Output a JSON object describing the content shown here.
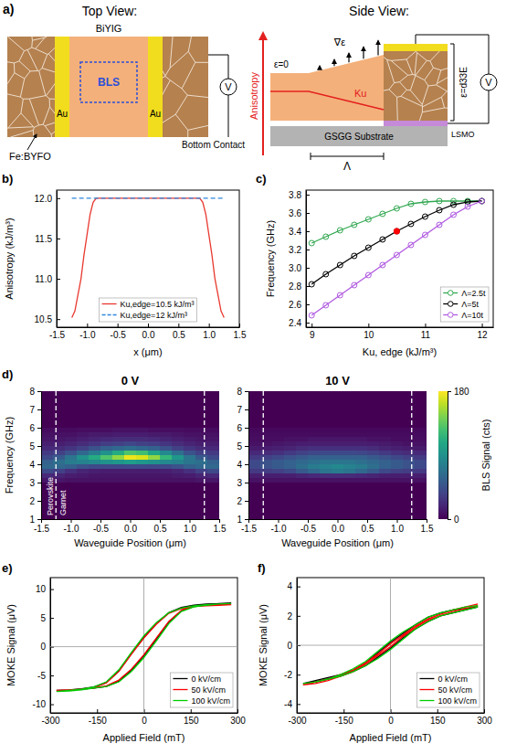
{
  "diagram": {
    "label": "a)",
    "top_view": {
      "title": "Top View:",
      "film": "BiYIG",
      "probe": "BLS",
      "electrodes": [
        "Au",
        "Au"
      ],
      "surround": "Fe:BYFO",
      "contact": "Bottom Contact",
      "meter": "V"
    },
    "side_view": {
      "title": "Side View:",
      "axis": "Anisotropy",
      "strain_zero": "ε=0",
      "strain_gradient": "∇ε",
      "anisotropy": "Ku",
      "strain": "ε=d33E",
      "meter": "V",
      "substrate": "GSGG Substrate",
      "electrode": "LSMO",
      "period": "Λ"
    }
  },
  "chart_data": [
    {
      "type": "line",
      "panel_label": "b)",
      "xlabel": "x (μm)",
      "ylabel": "Anisotropy (kJ/m³)",
      "x": [
        -1.25,
        -1.2,
        -1.15,
        -1.1,
        -1.05,
        -1.0,
        -0.95,
        -0.9,
        -0.85,
        0,
        0.85,
        0.9,
        0.95,
        1.0,
        1.05,
        1.1,
        1.15,
        1.2,
        1.25
      ],
      "series": [
        {
          "name": "Ku,edge=10.5 kJ/m³",
          "color": "#e8392f",
          "line_style": "solid",
          "values": [
            10.52,
            10.6,
            10.8,
            11.0,
            11.3,
            11.55,
            11.8,
            11.95,
            12.0,
            12.0,
            12.0,
            11.95,
            11.8,
            11.55,
            11.3,
            11.0,
            10.8,
            10.6,
            10.52
          ]
        },
        {
          "name": "Ku,edge=12 kJ/m³",
          "color": "#2e86de",
          "line_style": "dashed",
          "values": [
            12,
            12,
            12,
            12,
            12,
            12,
            12,
            12,
            12,
            12,
            12,
            12,
            12,
            12,
            12,
            12,
            12,
            12,
            12
          ]
        }
      ],
      "xlim": [
        -1.5,
        1.5
      ],
      "ylim": [
        10.4,
        12.1
      ],
      "xticks": [
        -1.5,
        {
          "value": -1,
          "label": "-1.0"
        },
        -0.5,
        {
          "value": 0,
          "label": "0.0"
        },
        0.5,
        {
          "value": 1,
          "label": "1.0"
        },
        1.5
      ],
      "yticks": [
        10.5,
        {
          "value": 11,
          "label": "11.0"
        },
        11.5,
        {
          "value": 12,
          "label": "12.0"
        }
      ],
      "legend": "lower center"
    },
    {
      "type": "line",
      "panel_label": "c)",
      "xlabel": "Ku, edge (kJ/m³)",
      "ylabel": "Frequency (GHz)",
      "x": [
        9,
        9.25,
        9.5,
        9.75,
        10,
        10.25,
        10.5,
        10.75,
        11,
        11.25,
        11.5,
        11.75,
        12
      ],
      "series": [
        {
          "name": "Λ=2.5t",
          "color": "#33a852",
          "marker": "circle",
          "line_style": "solid",
          "values": [
            3.27,
            3.34,
            3.41,
            3.47,
            3.53,
            3.59,
            3.65,
            3.7,
            3.72,
            3.73,
            3.73,
            3.73,
            3.73
          ]
        },
        {
          "name": "Λ=5t",
          "color": "#000000",
          "marker": "circle",
          "line_style": "solid",
          "values": [
            2.82,
            2.93,
            3.03,
            3.13,
            3.22,
            3.31,
            3.4,
            3.48,
            3.56,
            3.63,
            3.69,
            3.72,
            3.73
          ]
        },
        {
          "name": "Λ=10t",
          "color": "#b05be0",
          "marker": "circle",
          "line_style": "solid",
          "values": [
            2.48,
            2.59,
            2.7,
            2.81,
            2.92,
            3.03,
            3.14,
            3.25,
            3.36,
            3.47,
            3.58,
            3.67,
            3.73
          ]
        }
      ],
      "highlight": {
        "x": 10.5,
        "y": 3.4,
        "color": "#ff0000"
      },
      "xlim": [
        8.9,
        12.2
      ],
      "ylim": [
        2.35,
        3.85
      ],
      "xticks": [
        9,
        10,
        11,
        12
      ],
      "yticks": [
        2.4,
        2.6,
        2.8,
        {
          "value": 3,
          "label": "3.0"
        },
        3.2,
        3.4,
        3.6,
        3.8
      ],
      "legend": "lower right"
    },
    {
      "type": "heatmap",
      "panel_label": "d)",
      "xlabel": "Waveguide Position (μm)",
      "ylabel": "Frequency (GHz)",
      "xlim": [
        -1.5,
        1.5
      ],
      "ylim": [
        1,
        8
      ],
      "xticks": [
        -1.5,
        {
          "value": -1,
          "label": "-1.0"
        },
        -0.5,
        {
          "value": 0,
          "label": "0.0"
        },
        0.5,
        {
          "value": 1,
          "label": "1.0"
        },
        1.5
      ],
      "yticks": [
        1,
        2,
        3,
        4,
        5,
        6,
        7,
        8
      ],
      "vlines": [
        -1.25,
        1.25
      ],
      "x_edges": [
        -1.5,
        -1.3,
        -1.1,
        -0.9,
        -0.7,
        -0.5,
        -0.3,
        -0.1,
        0.1,
        0.3,
        0.5,
        0.7,
        0.9,
        1.1,
        1.3,
        1.5
      ],
      "y_edges": [
        3,
        3.25,
        3.5,
        3.75,
        4,
        4.25,
        4.5,
        4.75,
        5,
        5.25,
        5.5,
        5.75,
        6
      ],
      "colorbar": {
        "range": [
          0,
          180
        ],
        "ticks": [
          0,
          180
        ],
        "label": "BLS Signal (cts)"
      },
      "panels": [
        {
          "title": "0 V",
          "annotations": [
            "Perovskite",
            "Garnet"
          ],
          "values": [
            [
              10,
              10,
              8,
              8,
              8,
              8,
              8,
              8,
              8,
              8,
              8,
              8,
              8,
              10,
              10
            ],
            [
              20,
              18,
              14,
              12,
              10,
              10,
              10,
              10,
              10,
              10,
              10,
              12,
              14,
              18,
              20
            ],
            [
              40,
              35,
              25,
              18,
              15,
              14,
              14,
              14,
              14,
              14,
              15,
              18,
              25,
              35,
              40
            ],
            [
              60,
              60,
              55,
              45,
              40,
              38,
              38,
              40,
              40,
              38,
              40,
              45,
              55,
              60,
              60
            ],
            [
              55,
              65,
              75,
              80,
              85,
              90,
              95,
              100,
              95,
              90,
              85,
              80,
              70,
              65,
              55
            ],
            [
              40,
              50,
              70,
              90,
              110,
              130,
              150,
              175,
              170,
              150,
              120,
              95,
              70,
              50,
              40
            ],
            [
              30,
              35,
              45,
              60,
              75,
              90,
              110,
              130,
              125,
              105,
              85,
              65,
              45,
              35,
              30
            ],
            [
              20,
              22,
              28,
              35,
              45,
              55,
              60,
              65,
              60,
              55,
              45,
              35,
              28,
              22,
              20
            ],
            [
              15,
              15,
              18,
              22,
              28,
              32,
              35,
              38,
              35,
              32,
              28,
              22,
              18,
              15,
              15
            ],
            [
              10,
              10,
              12,
              15,
              18,
              20,
              22,
              22,
              22,
              20,
              18,
              15,
              12,
              10,
              10
            ],
            [
              8,
              8,
              8,
              10,
              12,
              12,
              14,
              14,
              14,
              12,
              12,
              10,
              8,
              8,
              8
            ],
            [
              5,
              5,
              5,
              6,
              6,
              6,
              8,
              8,
              8,
              6,
              6,
              6,
              5,
              5,
              5
            ]
          ]
        },
        {
          "title": "10 V",
          "values": [
            [
              8,
              8,
              8,
              8,
              8,
              8,
              8,
              8,
              8,
              8,
              8,
              8,
              8,
              8,
              8
            ],
            [
              15,
              15,
              15,
              15,
              18,
              20,
              22,
              22,
              22,
              20,
              18,
              15,
              15,
              15,
              15
            ],
            [
              30,
              32,
              35,
              40,
              50,
              60,
              70,
              75,
              70,
              60,
              50,
              40,
              35,
              32,
              30
            ],
            [
              40,
              45,
              50,
              55,
              65,
              75,
              80,
              85,
              80,
              75,
              65,
              55,
              50,
              45,
              40
            ],
            [
              40,
              45,
              50,
              55,
              60,
              65,
              70,
              70,
              70,
              65,
              60,
              55,
              50,
              45,
              40
            ],
            [
              30,
              35,
              40,
              45,
              50,
              55,
              55,
              55,
              55,
              55,
              50,
              45,
              40,
              35,
              30
            ],
            [
              20,
              22,
              25,
              30,
              35,
              38,
              40,
              40,
              40,
              38,
              35,
              30,
              25,
              22,
              20
            ],
            [
              12,
              14,
              16,
              18,
              22,
              25,
              25,
              25,
              25,
              25,
              22,
              18,
              16,
              14,
              12
            ],
            [
              8,
              8,
              10,
              12,
              14,
              15,
              15,
              15,
              15,
              15,
              14,
              12,
              10,
              8,
              8
            ],
            [
              6,
              6,
              6,
              8,
              8,
              10,
              10,
              10,
              10,
              10,
              8,
              8,
              6,
              6,
              6
            ],
            [
              5,
              5,
              5,
              5,
              5,
              5,
              5,
              5,
              5,
              5,
              5,
              5,
              5,
              5,
              5
            ],
            [
              4,
              4,
              4,
              4,
              4,
              4,
              4,
              4,
              4,
              4,
              4,
              4,
              4,
              4,
              4
            ]
          ]
        }
      ]
    },
    {
      "type": "line",
      "panel_label": "e)",
      "xlabel": "Applied Field (mT)",
      "ylabel": "MOKE Signal (μV)",
      "x": [
        280,
        240,
        200,
        160,
        120,
        80,
        40,
        0,
        -40,
        -80,
        -120,
        -160,
        -200,
        -240,
        -280,
        -240,
        -200,
        -160,
        -120,
        -80,
        -40,
        0,
        40,
        80,
        120,
        160,
        200,
        240,
        280
      ],
      "series": [
        {
          "name": "0 kV/cm",
          "color": "#000000",
          "line_style": "solid",
          "values": [
            7.6,
            7.5,
            7.4,
            7.2,
            6.8,
            5.9,
            4.0,
            1.6,
            -1.2,
            -4.2,
            -6.2,
            -7.0,
            -7.3,
            -7.5,
            -7.6,
            -7.5,
            -7.4,
            -7.2,
            -6.9,
            -6.0,
            -4.1,
            -1.6,
            1.3,
            4.3,
            6.2,
            7.0,
            7.3,
            7.5,
            7.6
          ]
        },
        {
          "name": "50 kV/cm",
          "color": "#ff0000",
          "line_style": "solid",
          "values": [
            7.3,
            7.2,
            7.1,
            7.0,
            6.6,
            5.8,
            3.9,
            1.5,
            -1.3,
            -4.3,
            -6.3,
            -7.1,
            -7.4,
            -7.5,
            -7.6,
            -7.5,
            -7.4,
            -7.2,
            -6.8,
            -5.8,
            -3.9,
            -1.4,
            1.5,
            4.4,
            6.3,
            7.0,
            7.2,
            7.3,
            7.3
          ]
        },
        {
          "name": "100 kV/cm",
          "color": "#00cc00",
          "line_style": "solid",
          "values": [
            7.5,
            7.4,
            7.3,
            7.1,
            6.7,
            5.9,
            4.2,
            1.9,
            -1.0,
            -4.0,
            -6.1,
            -7.0,
            -7.4,
            -7.6,
            -7.8,
            -7.7,
            -7.5,
            -7.2,
            -6.9,
            -6.1,
            -4.3,
            -1.9,
            1.0,
            4.0,
            6.1,
            6.9,
            7.2,
            7.4,
            7.5
          ]
        }
      ],
      "vlines": [
        0
      ],
      "hlines": [
        0
      ],
      "xlim": [
        -300,
        300
      ],
      "ylim": [
        -11.5,
        12
      ],
      "xticks": [
        -300,
        -150,
        0,
        150,
        300
      ],
      "yticks": [
        -10,
        -5,
        0,
        5,
        10
      ],
      "legend": "lower right"
    },
    {
      "type": "line",
      "panel_label": "f)",
      "xlabel": "Applied Field (mT)",
      "ylabel": "MOKE Signal (μV)",
      "x": [
        280,
        240,
        200,
        160,
        120,
        80,
        40,
        0,
        -40,
        -80,
        -120,
        -160,
        -200,
        -240,
        -280,
        -240,
        -200,
        -160,
        -120,
        -80,
        -40,
        0,
        40,
        80,
        120,
        160,
        200,
        240,
        280
      ],
      "series": [
        {
          "name": "0 kV/cm",
          "color": "#000000",
          "line_style": "solid",
          "values": [
            2.6,
            2.5,
            2.4,
            2.2,
            1.9,
            1.4,
            0.8,
            0.2,
            -0.5,
            -1.2,
            -1.7,
            -2.0,
            -2.2,
            -2.4,
            -2.6,
            -2.5,
            -2.3,
            -2.1,
            -1.8,
            -1.4,
            -0.8,
            -0.2,
            0.5,
            1.1,
            1.6,
            2.0,
            2.2,
            2.4,
            2.6
          ]
        },
        {
          "name": "50 kV/cm",
          "color": "#ff0000",
          "line_style": "solid",
          "values": [
            2.8,
            2.6,
            2.4,
            2.1,
            1.8,
            1.3,
            0.7,
            0.1,
            -0.6,
            -1.2,
            -1.7,
            -2.0,
            -2.3,
            -2.5,
            -2.7,
            -2.6,
            -2.4,
            -2.1,
            -1.8,
            -1.3,
            -0.7,
            -0.1,
            0.6,
            1.2,
            1.7,
            2.0,
            2.3,
            2.5,
            2.7
          ]
        },
        {
          "name": "100 kV/cm",
          "color": "#00cc00",
          "line_style": "solid",
          "values": [
            2.7,
            2.6,
            2.4,
            2.2,
            1.9,
            1.4,
            0.9,
            0.3,
            -0.4,
            -1.1,
            -1.6,
            -2.0,
            -2.3,
            -2.5,
            -2.6,
            -2.5,
            -2.3,
            -2.1,
            -1.8,
            -1.4,
            -0.9,
            -0.3,
            0.4,
            1.1,
            1.6,
            2.0,
            2.2,
            2.4,
            2.6
          ]
        }
      ],
      "vlines": [
        0
      ],
      "hlines": [
        0
      ],
      "xlim": [
        -300,
        300
      ],
      "ylim": [
        -4.6,
        4.6
      ],
      "xticks": [
        -300,
        -150,
        0,
        150,
        300
      ],
      "yticks": [
        -4,
        -2,
        0,
        2,
        4
      ],
      "legend": "lower right"
    }
  ]
}
